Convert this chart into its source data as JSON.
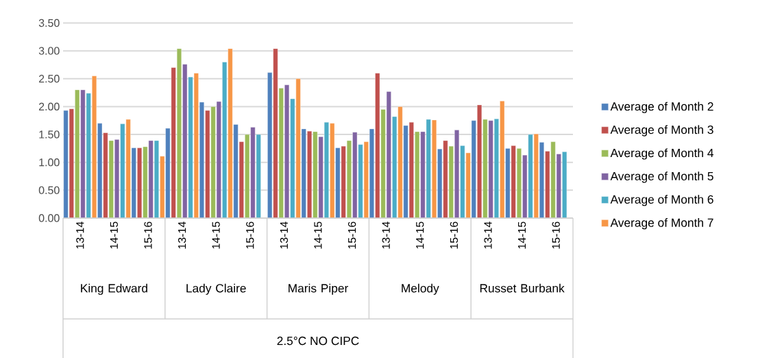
{
  "chart_data": {
    "type": "bar",
    "categories": [
      "13-14",
      "14-15",
      "15-16",
      "13-14",
      "14-15",
      "15-16",
      "13-14",
      "14-15",
      "15-16",
      "13-14",
      "14-15",
      "15-16",
      "13-14",
      "14-15",
      "15-16"
    ],
    "series": [
      {
        "name": "Average of Month 2",
        "color": "#4f81bd",
        "values": [
          1.93,
          1.7,
          1.26,
          1.61,
          2.08,
          1.68,
          2.61,
          1.6,
          1.26,
          1.6,
          1.66,
          1.24,
          1.75,
          1.25,
          1.36
        ]
      },
      {
        "name": "Average of Month 3",
        "color": "#c0504d",
        "values": [
          1.96,
          1.53,
          1.26,
          2.7,
          1.93,
          1.37,
          3.04,
          1.56,
          1.29,
          2.6,
          1.72,
          1.39,
          2.03,
          1.3,
          1.2
        ]
      },
      {
        "name": "Average of Month 4",
        "color": "#9bbb59",
        "values": [
          2.3,
          1.39,
          1.28,
          3.04,
          2.0,
          1.5,
          2.33,
          1.55,
          1.39,
          1.95,
          1.55,
          1.29,
          1.77,
          1.25,
          1.37
        ]
      },
      {
        "name": "Average of Month 5",
        "color": "#8064a2",
        "values": [
          2.3,
          1.41,
          1.39,
          2.76,
          2.09,
          1.63,
          2.39,
          1.46,
          1.54,
          2.27,
          1.55,
          1.58,
          1.75,
          1.13,
          1.15
        ]
      },
      {
        "name": "Average of Month 6",
        "color": "#4bacc6",
        "values": [
          2.24,
          1.69,
          1.39,
          2.53,
          2.8,
          1.5,
          2.14,
          1.72,
          1.32,
          1.82,
          1.77,
          1.3,
          1.78,
          1.5,
          1.19
        ]
      },
      {
        "name": "Average of Month 7",
        "color": "#f79646",
        "values": [
          2.55,
          1.77,
          1.11,
          2.6,
          3.04,
          null,
          2.5,
          1.7,
          1.37,
          2.0,
          1.76,
          1.17,
          2.1,
          1.51,
          null
        ]
      }
    ],
    "annotations": [
      "King Edward",
      "Lady Claire",
      "Maris Piper",
      "Melody",
      "Russet Burbank",
      "2.5°C NO CIPC"
    ],
    "ylim": [
      0,
      3.5
    ],
    "yticks": [
      {
        "value": 0,
        "label": "0.00"
      },
      {
        "value": 0.5,
        "label": "0.50"
      },
      {
        "value": 1,
        "label": "1.00"
      },
      {
        "value": 1.5,
        "label": "1.50"
      },
      {
        "value": 2,
        "label": "2.00"
      },
      {
        "value": 2.5,
        "label": "2.50"
      },
      {
        "value": 3,
        "label": "3.00"
      },
      {
        "value": 3.5,
        "label": "3.50"
      }
    ],
    "grid": "y",
    "legend": "right"
  }
}
